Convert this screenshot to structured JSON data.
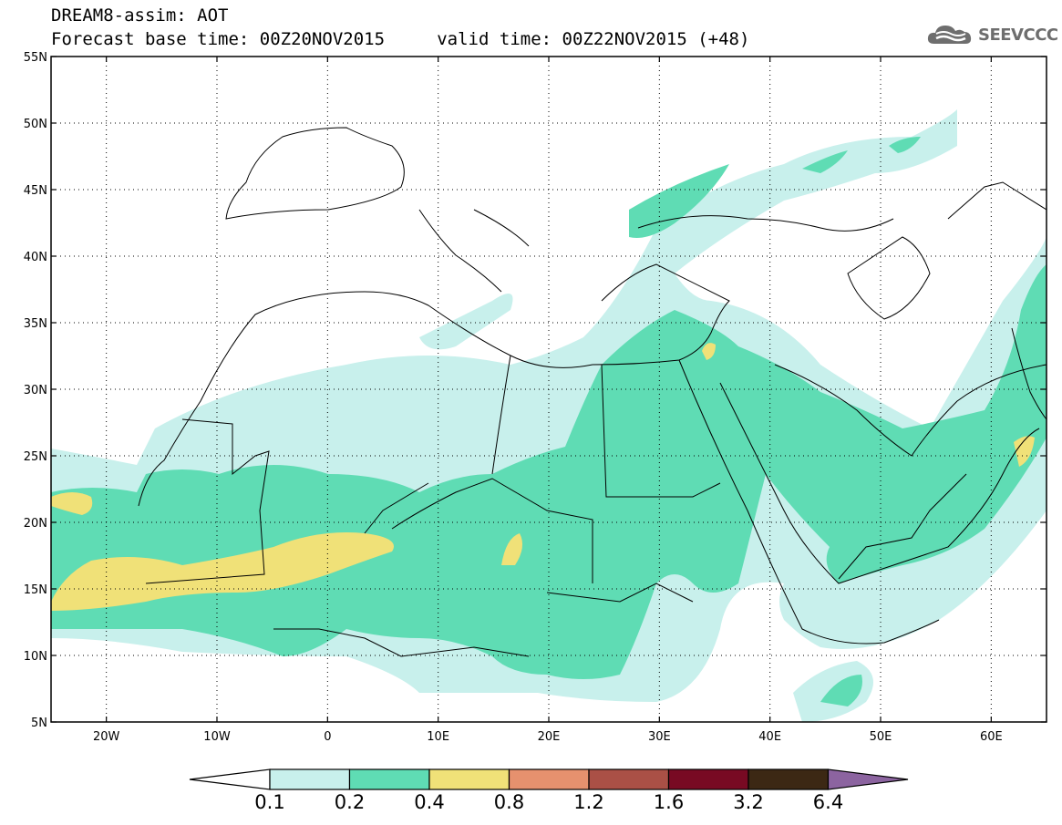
{
  "title": {
    "line1": "DREAM8-assim: AOT",
    "line2": "Forecast base time: 00Z20NOV2015     valid time: 00Z22NOV2015 (+48)"
  },
  "logo": {
    "text": "SEEVCCC",
    "icon": "cloud-icon"
  },
  "map": {
    "lon_range": [
      -25,
      65
    ],
    "lat_range": [
      5,
      55
    ],
    "lon_ticks": [
      {
        "value": -20,
        "label": "20W"
      },
      {
        "value": -10,
        "label": "10W"
      },
      {
        "value": 0,
        "label": "0"
      },
      {
        "value": 10,
        "label": "10E"
      },
      {
        "value": 20,
        "label": "20E"
      },
      {
        "value": 30,
        "label": "30E"
      },
      {
        "value": 40,
        "label": "40E"
      },
      {
        "value": 50,
        "label": "50E"
      },
      {
        "value": 60,
        "label": "60E"
      }
    ],
    "lat_ticks": [
      {
        "value": 55,
        "label": "55N"
      },
      {
        "value": 50,
        "label": "50N"
      },
      {
        "value": 45,
        "label": "45N"
      },
      {
        "value": 40,
        "label": "40N"
      },
      {
        "value": 35,
        "label": "35N"
      },
      {
        "value": 30,
        "label": "30N"
      },
      {
        "value": 25,
        "label": "25N"
      },
      {
        "value": 20,
        "label": "20N"
      },
      {
        "value": 15,
        "label": "15N"
      },
      {
        "value": 10,
        "label": "10N"
      },
      {
        "value": 5,
        "label": "5N"
      }
    ],
    "grid": true,
    "grid_style": "dotted"
  },
  "colorbar": {
    "bins": [
      {
        "color": "#c8f0ec"
      },
      {
        "color": "#5fdcb4"
      },
      {
        "color": "#f0e178"
      },
      {
        "color": "#e6916e"
      },
      {
        "color": "#aa5046"
      },
      {
        "color": "#780a23"
      },
      {
        "color": "#3c2814"
      }
    ],
    "under_color": "#ffffff",
    "over_color": "#8c64a0",
    "labels": [
      "0.1",
      "0.2",
      "0.4",
      "0.8",
      "1.2",
      "1.6",
      "3.2",
      "6.4"
    ]
  },
  "colors": {
    "low": "#c8f0ec",
    "mid": "#5fdcb4",
    "high": "#f0e178"
  }
}
